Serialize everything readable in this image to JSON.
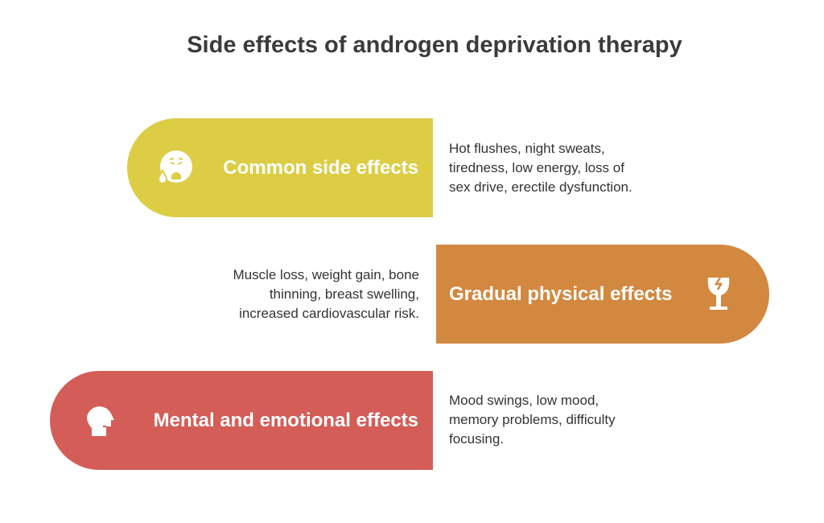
{
  "title": "Side effects of androgen deprivation therapy",
  "items": [
    {
      "label": "Common side effects",
      "icon": "sick-face-icon",
      "color": "#dccd45",
      "description": [
        "Hot flushes, night sweats,",
        "tiredness, low energy, loss of",
        "sex drive, erectile dysfunction."
      ]
    },
    {
      "label": "Gradual physical effects",
      "icon": "broken-glass-icon",
      "color": "#d3883f",
      "description": [
        "Muscle loss, weight gain, bone",
        "thinning, breast swelling,",
        "increased cardiovascular risk."
      ]
    },
    {
      "label": "Mental and emotional effects",
      "icon": "head-profile-icon",
      "color": "#d45d58",
      "description": [
        "Mood swings, low mood,",
        "memory problems, difficulty",
        "focusing."
      ]
    }
  ]
}
